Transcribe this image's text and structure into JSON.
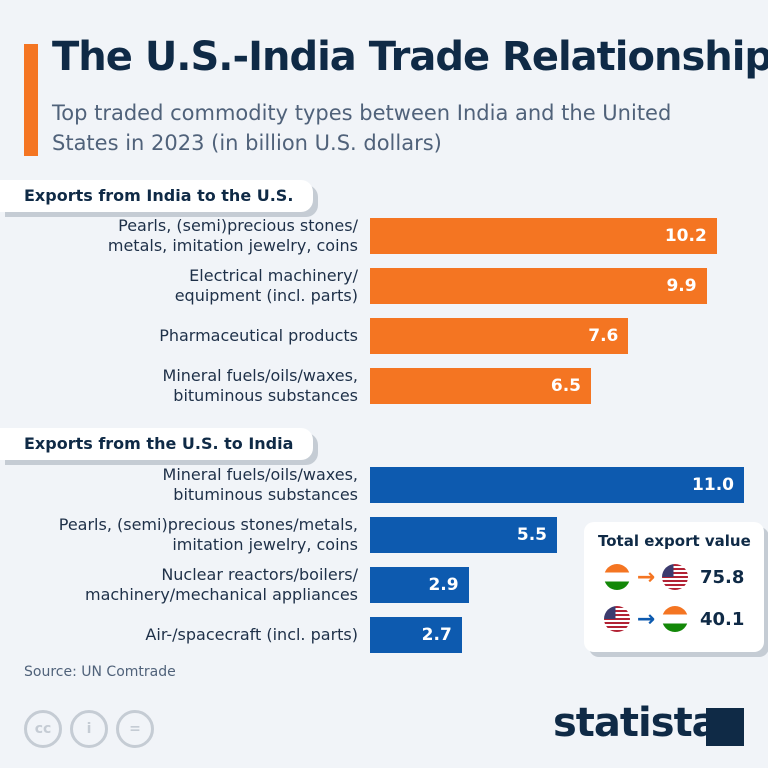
{
  "title": "The U.S.-India Trade Relationship",
  "subtitle": "Top traded commodity types between India and the United States in 2023 (in billion U.S. dollars)",
  "chart_data": [
    {
      "type": "bar",
      "title": "Exports from India to the U.S.",
      "color": "#f47522",
      "categories": [
        "Pearls, (semi)precious stones/\nmetals, imitation jewelry, coins",
        "Electrical machinery/\nequipment (incl. parts)",
        "Pharmaceutical products",
        "Mineral fuels/oils/waxes,\nbituminous substances"
      ],
      "values": [
        10.2,
        9.9,
        7.6,
        6.5
      ]
    },
    {
      "type": "bar",
      "title": "Exports from the U.S. to India",
      "color": "#0d5aaf",
      "categories": [
        "Mineral fuels/oils/waxes,\nbituminous substances",
        "Pearls, (semi)precious stones/metals,\nimitation jewelry, coins",
        "Nuclear reactors/boilers/\nmachinery/mechanical appliances",
        "Air-/spacecraft (incl. parts)"
      ],
      "values": [
        11.0,
        5.5,
        2.9,
        2.7
      ]
    }
  ],
  "total": {
    "heading": "Total export value",
    "india_to_us": "75.8",
    "us_to_india": "40.1"
  },
  "source": "Source: UN Comtrade",
  "license_icons": [
    "cc",
    "by",
    "nd"
  ],
  "logo": "statista"
}
